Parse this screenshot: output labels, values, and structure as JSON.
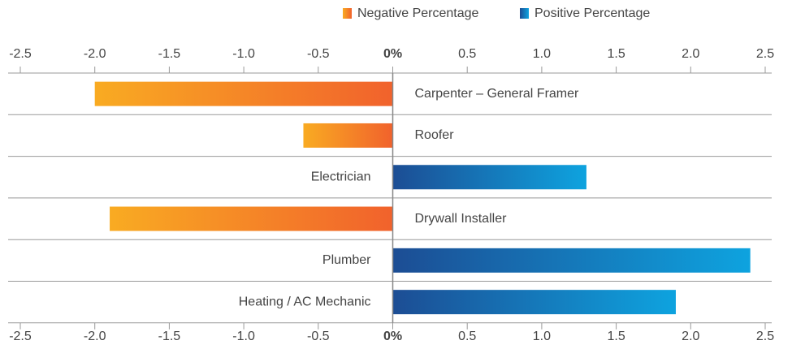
{
  "chart_data": {
    "type": "diverging-bar",
    "categories": [
      "Carpenter – General Framer",
      "Roofer",
      "Electrician",
      "Drywall Installer",
      "Plumber",
      "Heating / AC Mechanic"
    ],
    "series": [
      {
        "name": "Negative Percentage",
        "colors": [
          "#f9ab22",
          "#f1622c"
        ],
        "values": [
          -2.0,
          -0.6,
          null,
          -1.9,
          null,
          null
        ]
      },
      {
        "name": "Positive Percentage",
        "colors": [
          "#1c4d94",
          "#0ea3df"
        ],
        "values": [
          null,
          null,
          1.3,
          null,
          2.4,
          1.9
        ]
      }
    ],
    "xlim": [
      -2.5,
      2.5
    ],
    "xticks": [
      -2.5,
      {
        "value": -2,
        "label": "-2.0"
      },
      -1.5,
      {
        "value": -1,
        "label": "-1.0"
      },
      -0.5,
      {
        "value": 0,
        "label": "0%"
      },
      0.5,
      {
        "value": 1,
        "label": "1.0"
      },
      1.5,
      {
        "value": 2,
        "label": "2.0"
      },
      2.5
    ],
    "legend": "top-right"
  }
}
